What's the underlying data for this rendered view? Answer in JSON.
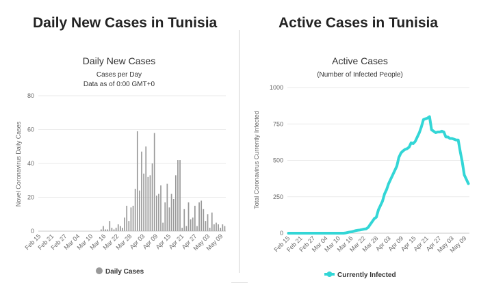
{
  "page": {
    "left_heading": "Daily New Cases in Tunisia",
    "right_heading": "Active Cases in Tunisia"
  },
  "chart_data": [
    {
      "type": "bar",
      "title": "Daily New Cases",
      "subtitle_1": "Cases per Day",
      "subtitle_2": "Data as of 0:00 GMT+0",
      "ylabel": "Novel Coronavirus Daily Cases",
      "xlabel": "",
      "ylim": [
        0,
        80
      ],
      "y_ticks": [
        0,
        20,
        40,
        60,
        80
      ],
      "x_tick_labels": [
        "Feb 15",
        "Feb 21",
        "Feb 27",
        "Mar 04",
        "Mar 10",
        "Mar 16",
        "Mar 22",
        "Mar 28",
        "Apr 03",
        "Apr 09",
        "Apr 15",
        "Apr 21",
        "Apr 27",
        "May 03",
        "May 09"
      ],
      "grid": true,
      "legend": {
        "position": "bottom",
        "entries": [
          "Daily Cases"
        ]
      },
      "color": "#999999",
      "series": [
        {
          "name": "Daily Cases",
          "values": [
            0,
            0,
            0,
            0,
            0,
            0,
            0,
            0,
            0,
            0,
            0,
            0,
            0,
            0,
            0,
            0,
            0,
            0,
            0,
            0,
            0,
            0,
            0,
            0,
            0,
            0,
            0,
            0,
            0,
            1,
            3,
            1,
            1,
            6,
            2,
            1,
            2,
            4,
            3,
            2,
            8,
            15,
            6,
            14,
            15,
            25,
            59,
            24,
            47,
            34,
            50,
            32,
            33,
            40,
            58,
            21,
            22,
            27,
            5,
            17,
            28,
            14,
            22,
            19,
            33,
            42,
            42,
            2,
            13,
            3,
            17,
            7,
            8,
            15,
            3,
            17,
            18,
            13,
            6,
            10,
            2,
            11,
            4,
            5,
            4,
            2,
            4,
            3
          ]
        }
      ]
    },
    {
      "type": "line",
      "title": "Active Cases",
      "subtitle": "(Number of Infected People)",
      "ylabel": "Total Coronavirus Currently Infected",
      "xlabel": "",
      "ylim": [
        0,
        1000
      ],
      "y_ticks": [
        0,
        250,
        500,
        750,
        1000
      ],
      "x_tick_labels": [
        "Feb 15",
        "Feb 21",
        "Feb 27",
        "Mar 04",
        "Mar 10",
        "Mar 16",
        "Mar 22",
        "Mar 28",
        "Apr 03",
        "Apr 09",
        "Apr 15",
        "Apr 21",
        "Apr 27",
        "May 03",
        "May 09"
      ],
      "grid": true,
      "legend": {
        "position": "bottom",
        "entries": [
          "Currently Infected"
        ]
      },
      "color": "#33d6d6",
      "series": [
        {
          "name": "Currently Infected",
          "values": [
            0,
            0,
            0,
            0,
            0,
            0,
            0,
            0,
            0,
            0,
            0,
            0,
            0,
            0,
            0,
            0,
            0,
            0,
            0,
            0,
            0,
            0,
            0,
            0,
            0,
            0,
            0,
            0,
            2,
            5,
            8,
            10,
            14,
            18,
            20,
            22,
            25,
            28,
            30,
            40,
            60,
            80,
            100,
            110,
            160,
            190,
            220,
            270,
            300,
            340,
            370,
            400,
            430,
            460,
            520,
            550,
            565,
            575,
            580,
            590,
            620,
            615,
            630,
            660,
            690,
            730,
            780,
            785,
            790,
            800,
            710,
            700,
            690,
            695,
            695,
            700,
            695,
            660,
            660,
            650,
            650,
            645,
            640,
            640,
            560,
            490,
            400,
            370,
            340
          ]
        }
      ]
    }
  ]
}
